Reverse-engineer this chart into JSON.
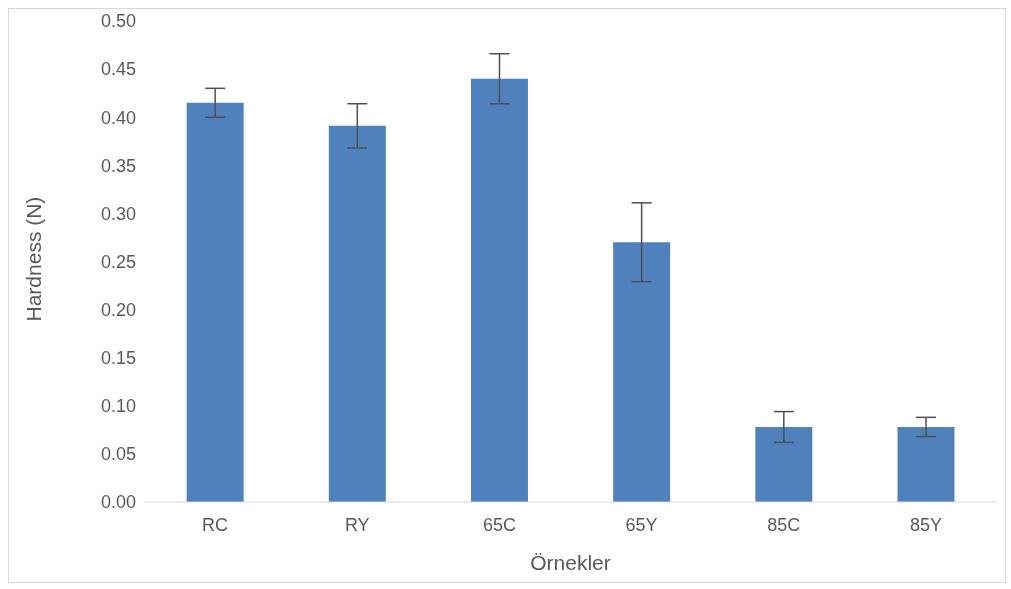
{
  "chart_data": {
    "type": "bar",
    "xlabel": "Örnekler",
    "ylabel": "Hardness (N)",
    "categories": [
      "RC",
      "RY",
      "65C",
      "65Y",
      "85C",
      "85Y"
    ],
    "values": [
      0.415,
      0.391,
      0.44,
      0.27,
      0.078,
      0.078
    ],
    "errors": [
      0.015,
      0.023,
      0.026,
      0.041,
      0.016,
      0.01
    ],
    "color": "#4f81bd",
    "ylim": [
      0,
      0.5
    ],
    "yticks": [
      {
        "value": 0,
        "label": "0.00"
      },
      {
        "value": 0.05,
        "label": "0.05"
      },
      {
        "value": 0.1,
        "label": "0.10"
      },
      {
        "value": 0.15,
        "label": "0.15"
      },
      {
        "value": 0.2,
        "label": "0.20"
      },
      {
        "value": 0.25,
        "label": "0.25"
      },
      {
        "value": 0.3,
        "label": "0.30"
      },
      {
        "value": 0.35,
        "label": "0.35"
      },
      {
        "value": 0.4,
        "label": "0.40"
      },
      {
        "value": 0.45,
        "label": "0.45"
      },
      {
        "value": 0.5,
        "label": "0.50"
      }
    ],
    "grid": false,
    "legend": false
  }
}
